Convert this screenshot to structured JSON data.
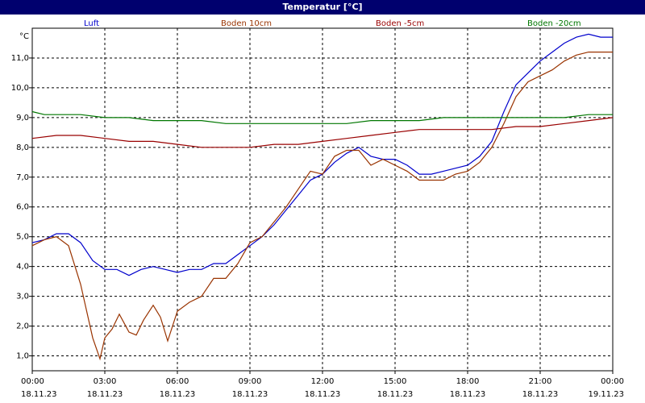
{
  "window": {
    "title": "Temperatur [°C]"
  },
  "chart_data": {
    "type": "line",
    "ylabel": "°C",
    "ylim": [
      0.5,
      12.0
    ],
    "yticks": [
      "1,0",
      "2,0",
      "3,0",
      "4,0",
      "5,0",
      "6,0",
      "7,0",
      "8,0",
      "9,0",
      "10,0",
      "11,0"
    ],
    "ytick_values": [
      1,
      2,
      3,
      4,
      5,
      6,
      7,
      8,
      9,
      10,
      11
    ],
    "xlim": [
      0,
      24
    ],
    "xticks": [
      {
        "time": "00:00",
        "date": "18.11.23"
      },
      {
        "time": "03:00",
        "date": "18.11.23"
      },
      {
        "time": "06:00",
        "date": "18.11.23"
      },
      {
        "time": "09:00",
        "date": "18.11.23"
      },
      {
        "time": "12:00",
        "date": "18.11.23"
      },
      {
        "time": "15:00",
        "date": "18.11.23"
      },
      {
        "time": "18:00",
        "date": "18.11.23"
      },
      {
        "time": "21:00",
        "date": "18.11.23"
      },
      {
        "time": "00:00",
        "date": "19.11.23"
      }
    ],
    "grid": true,
    "legend_position": "top",
    "series": [
      {
        "name": "Luft",
        "color": "#0000cc",
        "x": [
          0,
          0.5,
          1,
          1.5,
          2,
          2.5,
          3,
          3.5,
          4,
          4.5,
          5,
          5.5,
          6,
          6.5,
          7,
          7.5,
          8,
          8.5,
          9,
          9.5,
          10,
          10.5,
          11,
          11.5,
          12,
          12.5,
          13,
          13.5,
          14,
          14.5,
          15,
          15.5,
          16,
          16.5,
          17,
          17.5,
          18,
          18.5,
          19,
          19.5,
          20,
          20.5,
          21,
          21.5,
          22,
          22.5,
          23,
          23.5,
          24
        ],
        "y": [
          4.8,
          4.9,
          5.1,
          5.1,
          4.8,
          4.2,
          3.9,
          3.9,
          3.7,
          3.9,
          4.0,
          3.9,
          3.8,
          3.9,
          3.9,
          4.1,
          4.1,
          4.4,
          4.7,
          5.0,
          5.4,
          5.9,
          6.4,
          6.9,
          7.1,
          7.5,
          7.8,
          8.0,
          7.7,
          7.6,
          7.6,
          7.4,
          7.1,
          7.1,
          7.2,
          7.3,
          7.4,
          7.7,
          8.2,
          9.2,
          10.1,
          10.5,
          10.9,
          11.2,
          11.5,
          11.7,
          11.8,
          11.7,
          11.7
        ]
      },
      {
        "name": "Boden 10cm",
        "color": "#993300",
        "x": [
          0,
          0.5,
          1,
          1.5,
          2,
          2.5,
          2.8,
          3,
          3.3,
          3.6,
          4,
          4.3,
          4.6,
          5,
          5.3,
          5.6,
          6,
          6.5,
          7,
          7.5,
          8,
          8.5,
          9,
          9.5,
          10,
          10.5,
          11,
          11.5,
          12,
          12.5,
          13,
          13.5,
          14,
          14.5,
          15,
          15.5,
          16,
          16.5,
          17,
          17.5,
          18,
          18.5,
          19,
          19.5,
          20,
          20.5,
          21,
          21.5,
          22,
          22.5,
          23,
          23.5,
          24
        ],
        "y": [
          4.7,
          4.9,
          5.0,
          4.7,
          3.4,
          1.6,
          0.9,
          1.6,
          1.9,
          2.4,
          1.8,
          1.7,
          2.2,
          2.7,
          2.3,
          1.5,
          2.5,
          2.8,
          3.0,
          3.6,
          3.6,
          4.1,
          4.8,
          5.0,
          5.5,
          6.0,
          6.6,
          7.2,
          7.1,
          7.7,
          7.9,
          7.9,
          7.4,
          7.6,
          7.4,
          7.2,
          6.9,
          6.9,
          6.9,
          7.1,
          7.2,
          7.5,
          8.0,
          8.8,
          9.7,
          10.2,
          10.4,
          10.6,
          10.9,
          11.1,
          11.2,
          11.2,
          11.2
        ]
      },
      {
        "name": "Boden -5cm",
        "color": "#990000",
        "x": [
          0,
          1,
          2,
          3,
          4,
          5,
          6,
          7,
          8,
          9,
          10,
          11,
          12,
          13,
          14,
          15,
          16,
          17,
          18,
          19,
          20,
          21,
          22,
          23,
          24
        ],
        "y": [
          8.3,
          8.4,
          8.4,
          8.3,
          8.2,
          8.2,
          8.1,
          8.0,
          8.0,
          8.0,
          8.1,
          8.1,
          8.2,
          8.3,
          8.4,
          8.5,
          8.6,
          8.6,
          8.6,
          8.6,
          8.7,
          8.7,
          8.8,
          8.9,
          9.0
        ]
      },
      {
        "name": "Boden -20cm",
        "color": "#007700",
        "x": [
          0,
          0.5,
          1,
          2,
          3,
          4,
          5,
          6,
          7,
          8,
          9,
          10,
          11,
          12,
          13,
          14,
          15,
          16,
          17,
          18,
          19,
          20,
          21,
          22,
          23,
          24
        ],
        "y": [
          9.2,
          9.1,
          9.1,
          9.1,
          9.0,
          9.0,
          8.9,
          8.9,
          8.9,
          8.8,
          8.8,
          8.8,
          8.8,
          8.8,
          8.8,
          8.9,
          8.9,
          8.9,
          9.0,
          9.0,
          9.0,
          9.0,
          9.0,
          9.0,
          9.1,
          9.1
        ]
      }
    ]
  }
}
